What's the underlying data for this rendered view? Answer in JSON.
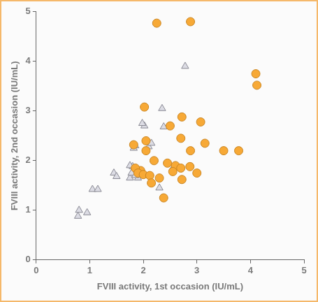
{
  "chart_data": {
    "type": "scatter",
    "x_label": "FVIII activity, 1st occasion (IU/mL)",
    "y_label": "FVIII activity, 2nd occasion (IU/mL)",
    "xlim": [
      0,
      5
    ],
    "ylim": [
      0,
      5
    ],
    "xticks": [
      0,
      1,
      2,
      3,
      4,
      5
    ],
    "yticks": [
      0,
      1,
      2,
      3,
      4,
      5
    ],
    "grid": false,
    "series": [
      {
        "color": "#f7a936",
        "marker": "circle",
        "x": [
          2.25,
          2.88,
          4.1,
          4.12,
          2.02,
          2.72,
          3.07,
          2.5,
          2.7,
          1.82,
          2.05,
          3.15,
          2.05,
          2.88,
          3.5,
          3.78,
          2.45,
          2.6,
          2.7,
          2.87,
          3.0,
          2.55,
          1.95,
          1.85,
          1.9,
          2.0,
          2.12,
          2.3,
          2.72,
          2.15,
          2.38,
          2.2
        ],
        "values": [
          4.77,
          4.8,
          3.75,
          3.52,
          3.08,
          2.88,
          2.78,
          2.7,
          2.45,
          2.32,
          2.4,
          2.35,
          2.2,
          2.2,
          2.2,
          2.2,
          1.95,
          1.9,
          1.85,
          1.88,
          1.75,
          1.78,
          1.8,
          1.85,
          1.75,
          1.72,
          1.7,
          1.65,
          1.62,
          1.55,
          1.25,
          2.0
        ]
      },
      {
        "color": "#dcdce4",
        "marker": "triangle",
        "x": [
          0.78,
          0.8,
          0.95,
          1.05,
          1.15,
          1.45,
          1.5,
          1.75,
          1.78,
          1.8,
          1.82,
          1.85,
          1.9,
          1.95,
          2.0,
          2.02,
          1.98,
          2.1,
          2.15,
          2.3,
          2.35,
          2.38,
          2.55,
          2.78,
          1.85,
          1.75
        ],
        "values": [
          0.88,
          1.0,
          0.95,
          1.42,
          1.42,
          1.75,
          1.68,
          1.65,
          1.75,
          1.88,
          2.25,
          2.3,
          1.65,
          1.72,
          1.75,
          2.7,
          2.75,
          2.28,
          2.35,
          1.45,
          3.05,
          2.68,
          1.85,
          3.9,
          1.7,
          1.9
        ]
      }
    ]
  }
}
